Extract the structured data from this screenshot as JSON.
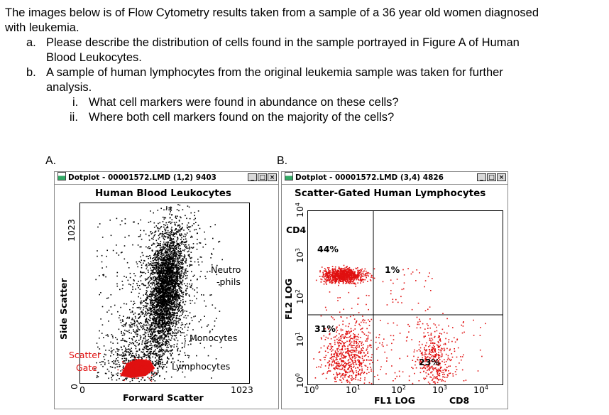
{
  "question": {
    "intro_line1": "The images below is of Flow Cytometry results taken from a sample of a 36 year old women diagnosed",
    "intro_line2": "with leukemia.",
    "a_marker": "a.",
    "a_line1": "Please describe the distribution of cells found in the sample portrayed in Figure A of Human",
    "a_line2": "Blood Leukocytes.",
    "b_marker": "b.",
    "b_line1": "A sample of human lymphocytes from the original leukemia sample was taken for further",
    "b_line2": "analysis.",
    "i_marker": "i.",
    "i_text": "What cell markers were found in abundance on these cells?",
    "ii_marker": "ii.",
    "ii_text": "Where both cell markers found on the majority of the cells?"
  },
  "figureA": {
    "label": "A.",
    "window_title": "Dotplot - 00001572.LMD (1,2) 9403",
    "plot_title": "Human Blood Leukocytes",
    "y_axis_label": "Side Scatter",
    "x_axis_label": "Forward Scatter",
    "y_tick_max": "1023",
    "y_tick_min": "0",
    "x_tick_min": "0",
    "x_tick_max": "1023",
    "label_neutrophils_1": "Neutro",
    "label_neutrophils_2": "-phils",
    "label_monocytes": "Monocytes",
    "label_lymphocytes": "Lymphocytes",
    "label_scatter": "Scatter",
    "label_gate": "Gate"
  },
  "figureB": {
    "label": "B.",
    "window_title": "Dotplot - 00001572.LMD (3,4) 4826",
    "plot_title": "Scatter-Gated Human Lymphocytes",
    "y_axis_label": "FL2 LOG",
    "y_marker": "CD4",
    "x_axis_label": "FL1 LOG",
    "x_marker": "CD8",
    "tick_base": "10",
    "exponents": [
      "0",
      "1",
      "2",
      "3",
      "4"
    ],
    "pct_upper_left": "44%",
    "pct_upper_right": "1%",
    "pct_lower_left": "31%",
    "pct_lower_right": "23%"
  },
  "colors": {
    "gate_red": "#e01010",
    "dots_black": "#000000"
  },
  "window_buttons": {
    "minimize": "_",
    "maximize": "□",
    "close": "×"
  }
}
